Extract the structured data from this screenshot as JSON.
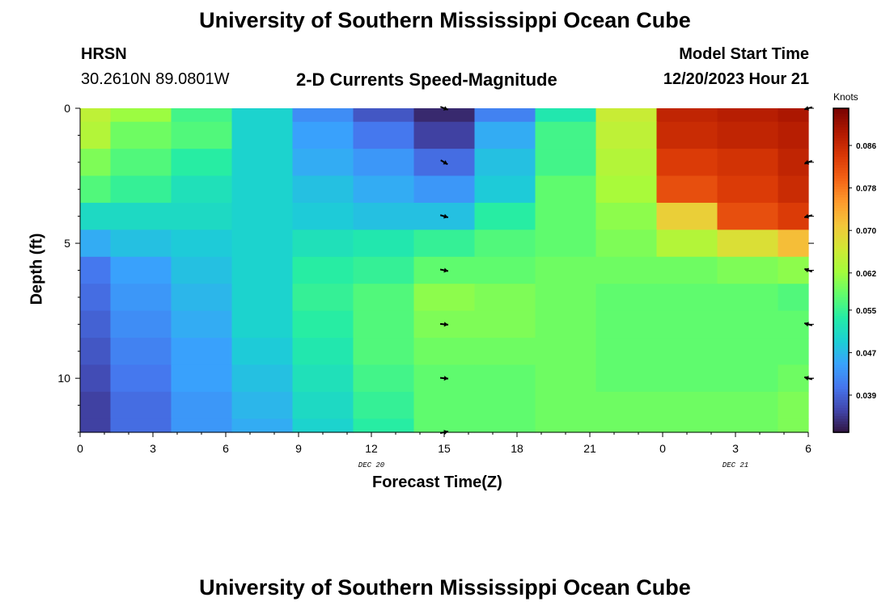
{
  "header": {
    "title": "University of Southern Mississippi Ocean Cube",
    "station": "HRSN",
    "coords": "30.2610N  89.0801W",
    "subtitle": "2-D Currents Speed-Magnitude",
    "model_start_label": "Model Start Time",
    "model_start_value": "12/20/2023 Hour 21"
  },
  "footer": {
    "title": "University of Southern Mississippi Ocean Cube"
  },
  "colors": {
    "ramp": [
      "#30123b",
      "#4145ab",
      "#4675ed",
      "#39a2fc",
      "#1bcfd4",
      "#24eca6",
      "#61fc6c",
      "#a4fc3b",
      "#d1e834",
      "#f3c63a",
      "#fe9b2d",
      "#f36315",
      "#d93806",
      "#b11901",
      "#7a0402"
    ]
  },
  "chart_data": {
    "type": "heatmap",
    "title": "2-D Currents Speed-Magnitude",
    "xlabel": "Forecast Time(Z)",
    "ylabel": "Depth (ft)",
    "x_tick_labels": [
      "0",
      "3",
      "6",
      "9",
      "12",
      "15",
      "18",
      "21",
      "0",
      "3",
      "6"
    ],
    "x_hours": [
      0,
      3,
      6,
      9,
      12,
      15,
      18,
      21,
      24,
      27,
      30
    ],
    "xlim": [
      0,
      30
    ],
    "date_labels": [
      {
        "text": "DEC 20",
        "hour": 12
      },
      {
        "text": "DEC 21",
        "hour": 27
      }
    ],
    "y_tick_labels": [
      "0",
      "5",
      "10"
    ],
    "y_ticks": [
      0,
      5,
      10
    ],
    "ylim": [
      0,
      12
    ],
    "colorbar": {
      "title": "Knots",
      "ticks": [
        "0.086",
        "0.078",
        "0.070",
        "0.062",
        "0.055",
        "0.047",
        "0.039"
      ],
      "tick_values": [
        0.086,
        0.078,
        0.07,
        0.062,
        0.055,
        0.047,
        0.039
      ],
      "min": 0.032,
      "max": 0.093
    },
    "time_bins_hours": [
      0,
      1.25,
      3.75,
      6.25,
      8.75,
      11.25,
      13.75,
      16.25,
      18.75,
      21.25,
      23.75,
      26.25,
      28.75,
      30
    ],
    "depth_bins_ft": [
      0,
      0.5,
      1.5,
      2.5,
      3.5,
      4.5,
      5.5,
      6.5,
      7.5,
      8.5,
      9.5,
      10.5,
      11.5,
      12
    ],
    "speed_knots": [
      [
        0.065,
        0.062,
        0.056,
        0.05,
        0.043,
        0.038,
        0.034,
        0.042,
        0.053,
        0.066,
        0.087,
        0.088,
        0.089
      ],
      [
        0.064,
        0.059,
        0.057,
        0.05,
        0.045,
        0.041,
        0.036,
        0.046,
        0.056,
        0.065,
        0.086,
        0.087,
        0.088
      ],
      [
        0.06,
        0.057,
        0.054,
        0.05,
        0.046,
        0.044,
        0.04,
        0.048,
        0.056,
        0.064,
        0.084,
        0.085,
        0.087
      ],
      [
        0.057,
        0.055,
        0.052,
        0.05,
        0.048,
        0.046,
        0.044,
        0.049,
        0.058,
        0.063,
        0.082,
        0.084,
        0.086
      ],
      [
        0.051,
        0.051,
        0.051,
        0.05,
        0.049,
        0.048,
        0.048,
        0.054,
        0.058,
        0.061,
        0.07,
        0.082,
        0.084
      ],
      [
        0.046,
        0.048,
        0.049,
        0.05,
        0.052,
        0.053,
        0.055,
        0.057,
        0.058,
        0.06,
        0.064,
        0.068,
        0.072
      ],
      [
        0.041,
        0.045,
        0.048,
        0.05,
        0.054,
        0.055,
        0.058,
        0.058,
        0.059,
        0.059,
        0.059,
        0.06,
        0.061
      ],
      [
        0.04,
        0.044,
        0.047,
        0.05,
        0.055,
        0.057,
        0.061,
        0.06,
        0.059,
        0.058,
        0.058,
        0.058,
        0.057
      ],
      [
        0.039,
        0.043,
        0.046,
        0.05,
        0.054,
        0.057,
        0.06,
        0.06,
        0.059,
        0.058,
        0.058,
        0.058,
        0.058
      ],
      [
        0.038,
        0.042,
        0.045,
        0.049,
        0.053,
        0.057,
        0.059,
        0.059,
        0.059,
        0.058,
        0.058,
        0.058,
        0.058
      ],
      [
        0.037,
        0.041,
        0.045,
        0.048,
        0.052,
        0.056,
        0.058,
        0.058,
        0.059,
        0.058,
        0.058,
        0.058,
        0.059
      ],
      [
        0.036,
        0.04,
        0.044,
        0.047,
        0.051,
        0.055,
        0.058,
        0.058,
        0.059,
        0.059,
        0.059,
        0.059,
        0.06
      ],
      [
        0.036,
        0.04,
        0.044,
        0.046,
        0.05,
        0.054,
        0.058,
        0.058,
        0.059,
        0.059,
        0.059,
        0.059,
        0.06
      ]
    ],
    "vectors": [
      {
        "hour": 15,
        "depth": 0,
        "dx": 1,
        "dy": 0.4
      },
      {
        "hour": 15,
        "depth": 2,
        "dx": 1,
        "dy": 0.6
      },
      {
        "hour": 15,
        "depth": 4,
        "dx": 1,
        "dy": 0.3
      },
      {
        "hour": 15,
        "depth": 6,
        "dx": 1,
        "dy": 0.2
      },
      {
        "hour": 15,
        "depth": 8,
        "dx": 1,
        "dy": 0.1
      },
      {
        "hour": 15,
        "depth": 10,
        "dx": 1,
        "dy": 0.1
      },
      {
        "hour": 15,
        "depth": 12,
        "dx": 1,
        "dy": -0.2
      },
      {
        "hour": 30,
        "depth": 0,
        "dx": -1,
        "dy": 0.3
      },
      {
        "hour": 30,
        "depth": 2,
        "dx": -1,
        "dy": 0.4
      },
      {
        "hour": 30,
        "depth": 4,
        "dx": -1,
        "dy": 0.3
      },
      {
        "hour": 30,
        "depth": 6,
        "dx": -1,
        "dy": -0.4
      },
      {
        "hour": 30,
        "depth": 8,
        "dx": -1,
        "dy": -0.3
      },
      {
        "hour": 30,
        "depth": 10,
        "dx": -1,
        "dy": -0.3
      }
    ]
  }
}
